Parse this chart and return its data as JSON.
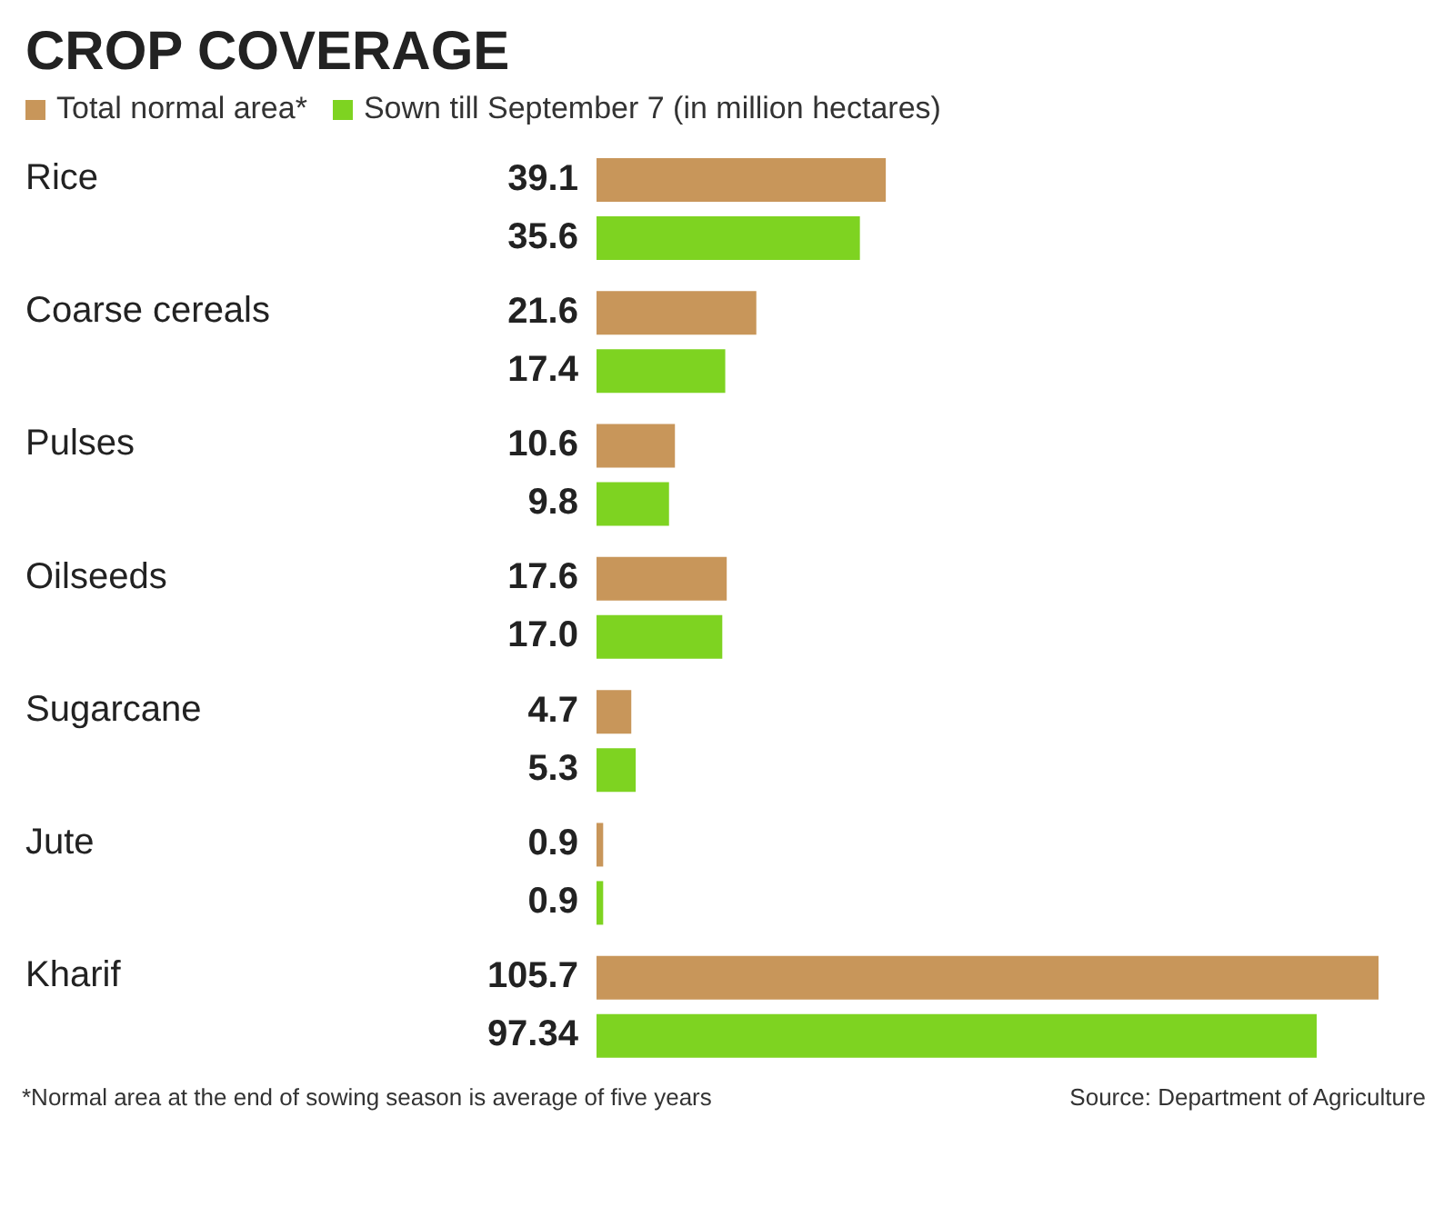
{
  "chart_data": {
    "type": "bar",
    "orientation": "horizontal",
    "title": "CROP COVERAGE",
    "categories": [
      "Rice",
      "Coarse cereals",
      "Pulses",
      "Oilseeds",
      "Sugarcane",
      "Jute",
      "Kharif"
    ],
    "series": [
      {
        "name": "Total normal area*",
        "color": "#c8965a",
        "values": [
          39.1,
          21.6,
          10.6,
          17.6,
          4.7,
          0.9,
          105.7
        ],
        "value_labels": [
          "39.1",
          "21.6",
          "10.6",
          "17.6",
          "4.7",
          "0.9",
          "105.7"
        ]
      },
      {
        "name": "Sown till September 7 (in million hectares)",
        "color": "#7ed321",
        "values": [
          35.6,
          17.4,
          9.8,
          17.0,
          5.3,
          0.9,
          97.34
        ],
        "value_labels": [
          "35.6",
          "17.4",
          "9.8",
          "17.0",
          "5.3",
          "0.9",
          "97.34"
        ]
      }
    ],
    "legend": "top left",
    "annotations": [
      "*Normal area at the end of sowing season is average of five years",
      "Source: Department of Agriculture"
    ]
  }
}
